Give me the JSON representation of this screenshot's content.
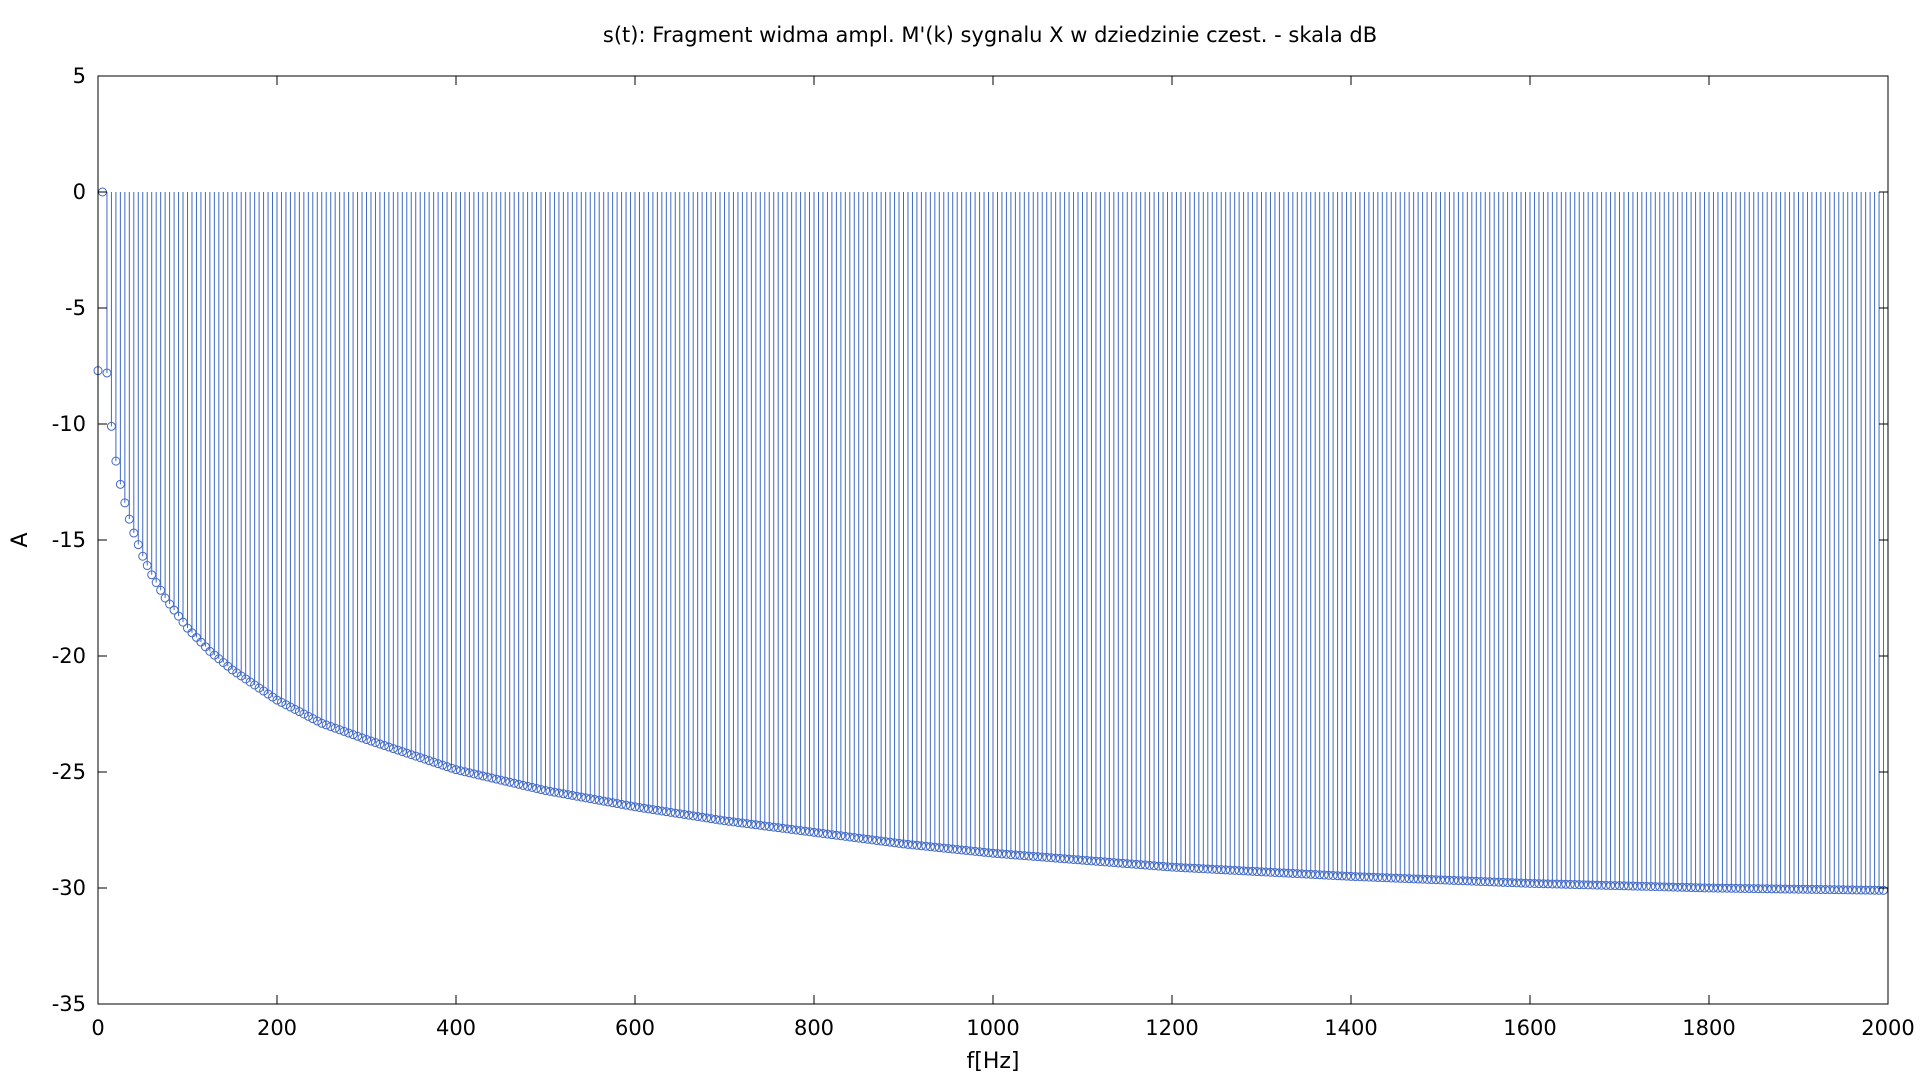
{
  "chart_data": {
    "type": "stem",
    "title": "s(t): Fragment widma ampl. M'(k) sygnalu X w dziedzinie czest. - skala dB",
    "xlabel": "f[Hz]",
    "ylabel": "A",
    "xlim": [
      0,
      2000
    ],
    "ylim": [
      -35,
      5
    ],
    "xticks": [
      0,
      200,
      400,
      600,
      800,
      1000,
      1200,
      1400,
      1600,
      1800,
      2000
    ],
    "yticks": [
      5,
      0,
      -5,
      -10,
      -15,
      -20,
      -25,
      -30,
      -35
    ],
    "baseline": 0,
    "grid": false,
    "legend": false,
    "series": [
      {
        "color": "#4169c8",
        "marker": "open-circle",
        "x_start": 0,
        "x_step": 5,
        "x_end": 1995,
        "sample_points": [
          {
            "x": 0,
            "y": -7.7
          },
          {
            "x": 5,
            "y": 0
          },
          {
            "x": 10,
            "y": -7.8
          },
          {
            "x": 15,
            "y": -10.1
          },
          {
            "x": 20,
            "y": -11.6
          },
          {
            "x": 25,
            "y": -12.6
          },
          {
            "x": 30,
            "y": -13.4
          },
          {
            "x": 35,
            "y": -14.1
          },
          {
            "x": 40,
            "y": -14.7
          },
          {
            "x": 50,
            "y": -15.7
          },
          {
            "x": 60,
            "y": -16.5
          },
          {
            "x": 75,
            "y": -17.5
          },
          {
            "x": 100,
            "y": -18.8
          },
          {
            "x": 125,
            "y": -19.8
          },
          {
            "x": 150,
            "y": -20.6
          },
          {
            "x": 200,
            "y": -21.9
          },
          {
            "x": 250,
            "y": -22.9
          },
          {
            "x": 300,
            "y": -23.6
          },
          {
            "x": 400,
            "y": -24.9
          },
          {
            "x": 500,
            "y": -25.8
          },
          {
            "x": 600,
            "y": -26.5
          },
          {
            "x": 700,
            "y": -27.1
          },
          {
            "x": 800,
            "y": -27.6
          },
          {
            "x": 900,
            "y": -28.1
          },
          {
            "x": 1000,
            "y": -28.5
          },
          {
            "x": 1200,
            "y": -29.1
          },
          {
            "x": 1400,
            "y": -29.5
          },
          {
            "x": 1600,
            "y": -29.8
          },
          {
            "x": 1800,
            "y": -30.0
          },
          {
            "x": 1995,
            "y": -30.1
          }
        ]
      }
    ]
  }
}
